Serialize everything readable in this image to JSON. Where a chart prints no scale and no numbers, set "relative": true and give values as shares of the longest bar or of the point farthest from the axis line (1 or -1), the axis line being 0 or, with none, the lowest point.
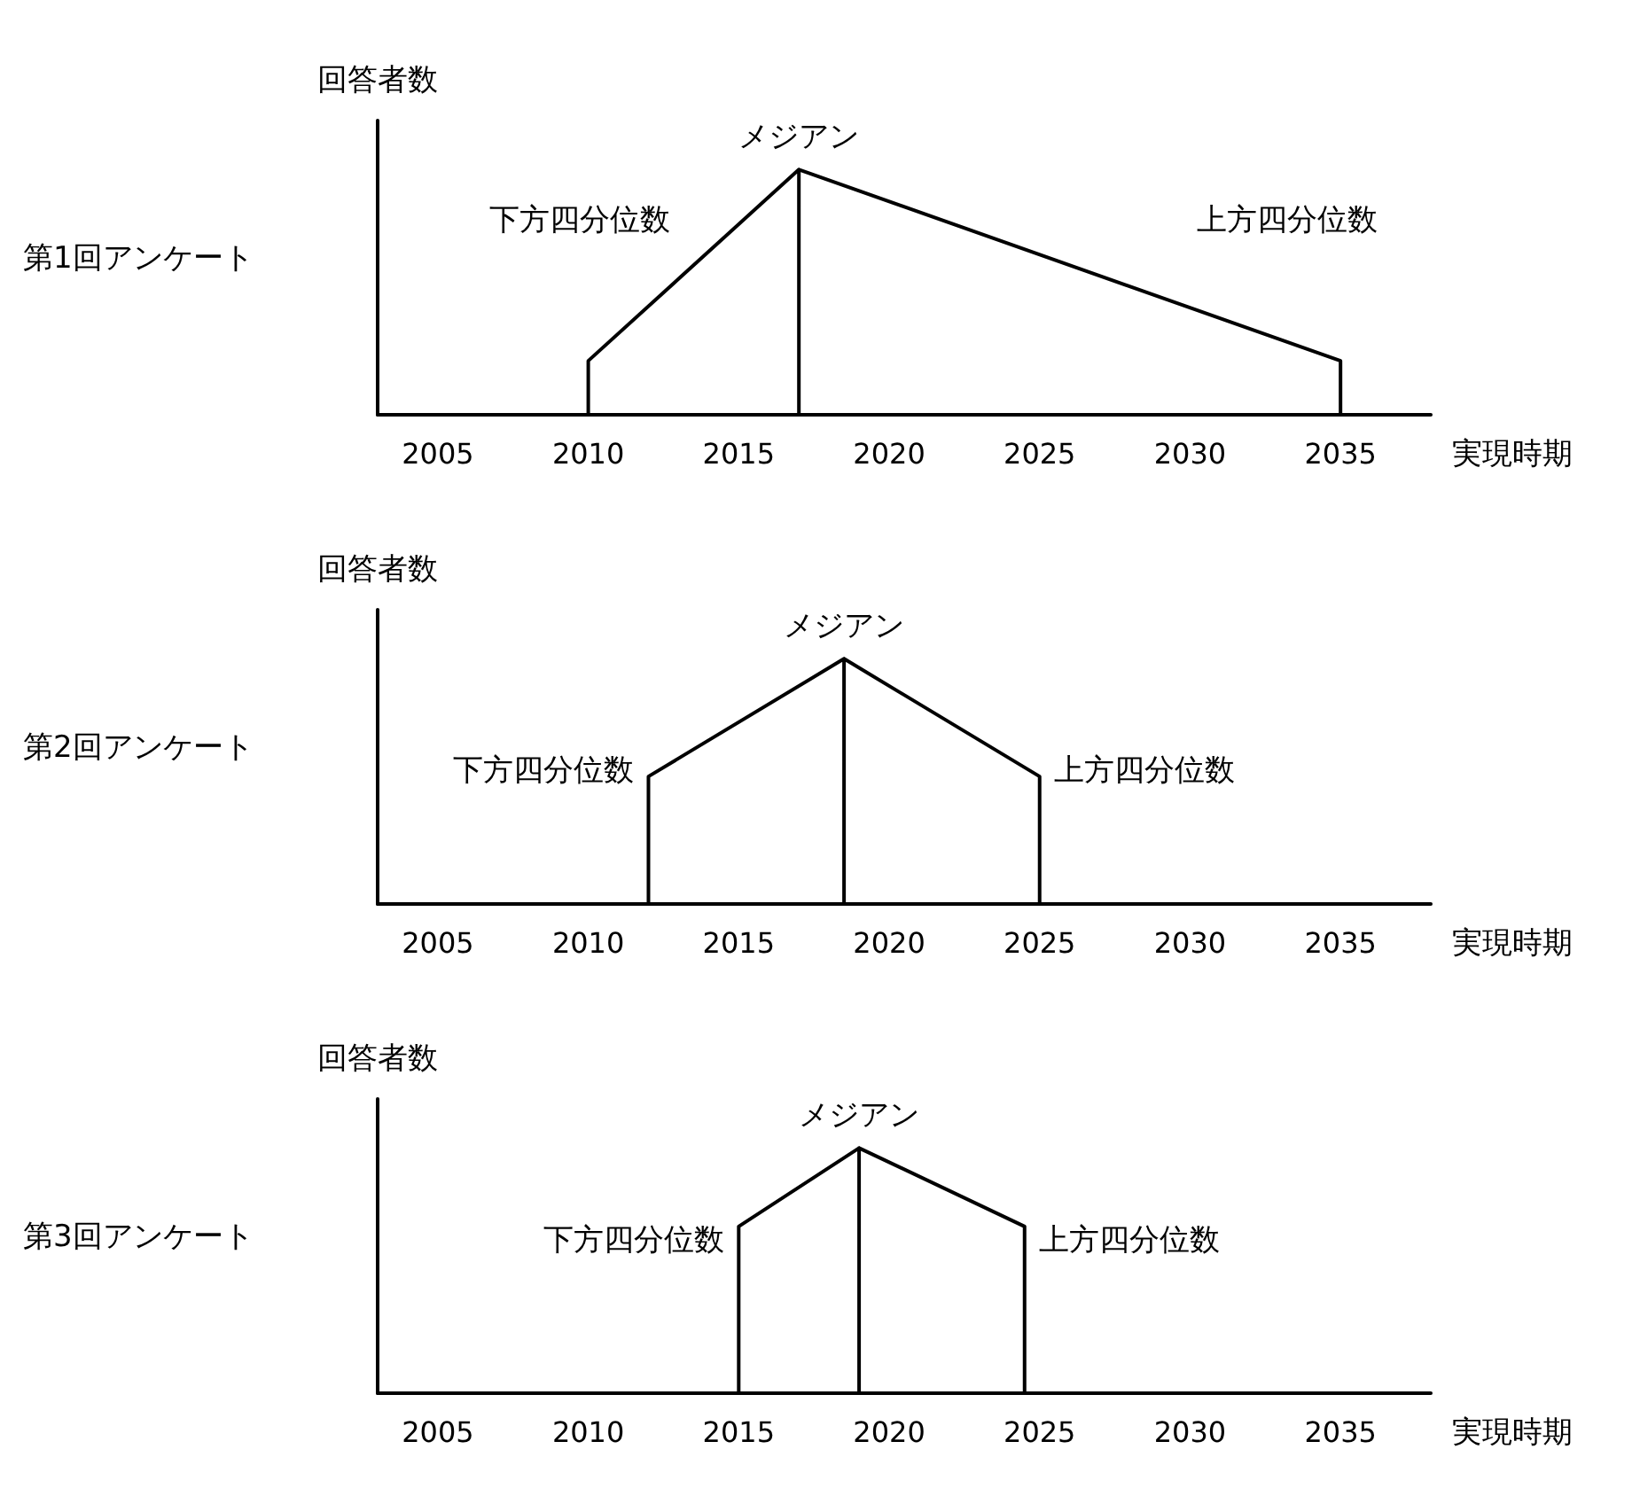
{
  "chart_data": [
    {
      "type": "line",
      "title": "第1回アンケート",
      "ylabel": "回答者数",
      "xlabel": "実現時期",
      "relative": true,
      "color": "#000000",
      "marker": "none",
      "line_style": "solid",
      "grid": false,
      "xlim": [
        2003,
        2038
      ],
      "xticks": [
        2005,
        2010,
        2015,
        2020,
        2025,
        2030,
        2035
      ],
      "x": [
        2010,
        2010,
        2017,
        2017,
        2017,
        2035,
        2035
      ],
      "values": [
        0,
        0.22,
        1,
        0,
        1,
        0.22,
        0
      ],
      "annotations": [
        "下方四分位数",
        "メジアン",
        "上方四分位数"
      ]
    },
    {
      "type": "line",
      "title": "第2回アンケート",
      "ylabel": "回答者数",
      "xlabel": "実現時期",
      "relative": true,
      "color": "#000000",
      "marker": "none",
      "line_style": "solid",
      "grid": false,
      "xlim": [
        2003,
        2038
      ],
      "xticks": [
        2005,
        2010,
        2015,
        2020,
        2025,
        2030,
        2035
      ],
      "x": [
        2012,
        2012,
        2018.5,
        2018.5,
        2018.5,
        2025,
        2025
      ],
      "values": [
        0,
        0.52,
        1,
        0,
        1,
        0.52,
        0
      ],
      "annotations": [
        "下方四分位数",
        "メジアン",
        "上方四分位数"
      ]
    },
    {
      "type": "line",
      "title": "第3回アンケート",
      "ylabel": "回答者数",
      "xlabel": "実現時期",
      "relative": true,
      "color": "#000000",
      "marker": "none",
      "line_style": "solid",
      "grid": false,
      "xlim": [
        2003,
        2038
      ],
      "xticks": [
        2005,
        2010,
        2015,
        2020,
        2025,
        2030,
        2035
      ],
      "x": [
        2015,
        2015,
        2019,
        2019,
        2019,
        2024.5,
        2024.5
      ],
      "values": [
        0,
        0.68,
        1,
        0,
        1,
        0.68,
        0
      ],
      "annotations": [
        "下方四分位数",
        "メジアン",
        "上方四分位数"
      ]
    }
  ]
}
